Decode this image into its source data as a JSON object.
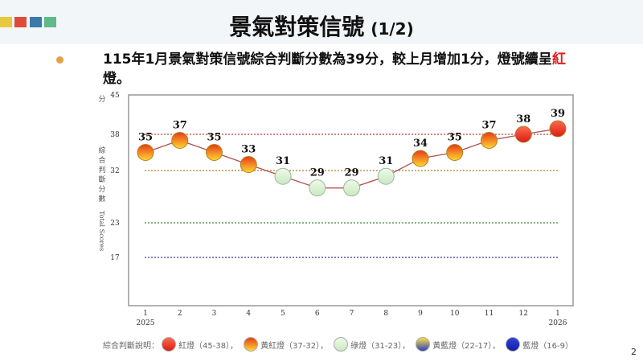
{
  "header": {
    "title": "景氣對策信號",
    "subtitle": "(1/2)",
    "accent_colors": [
      "#e8c93c",
      "#e04a3a",
      "#3a7aa8",
      "#5fb98a"
    ]
  },
  "bullet": {
    "text_before": "115年1月景氣對策信號綜合判斷分數為39分，較上月增加1分，燈號續呈",
    "highlight": "紅",
    "text_after": "燈。"
  },
  "page_number": "2",
  "chart_data": {
    "type": "line",
    "ylabel_unit": "分",
    "ylabel_zh": "綜合判斷分數",
    "ylabel_en": "Total Scores",
    "yticks": [
      45,
      38,
      32,
      23,
      17
    ],
    "ylim": [
      9,
      45
    ],
    "x": [
      "1",
      "2",
      "3",
      "4",
      "5",
      "6",
      "7",
      "8",
      "9",
      "10",
      "11",
      "12",
      "1"
    ],
    "x_years": {
      "0": "2025",
      "12": "2026"
    },
    "values": [
      35,
      37,
      35,
      33,
      31,
      29,
      29,
      31,
      34,
      35,
      37,
      38,
      39
    ],
    "thresholds": [
      {
        "value": 38,
        "color": "#c0392b"
      },
      {
        "value": 32,
        "color": "#b07a2a"
      },
      {
        "value": 23,
        "color": "#3a8a3a"
      },
      {
        "value": 17,
        "color": "#3030a0"
      }
    ],
    "signal_colors": {
      "red": "#e53020",
      "yellow_red": "#f4a020",
      "green": "#d8f0d0",
      "yellow_blue": "#8888d0",
      "blue": "#2030c0"
    },
    "legend": {
      "label": "綜合判斷說明：",
      "items": [
        {
          "name": "紅燈（45-38）",
          "kind": "red"
        },
        {
          "name": "黃紅燈（37-32）",
          "kind": "yellow_red"
        },
        {
          "name": "綠燈（31-23）",
          "kind": "green"
        },
        {
          "name": "黃藍燈（22-17）",
          "kind": "yellow_blue"
        },
        {
          "name": "藍燈（16-9）",
          "kind": "blue"
        }
      ],
      "separator": "，"
    }
  }
}
